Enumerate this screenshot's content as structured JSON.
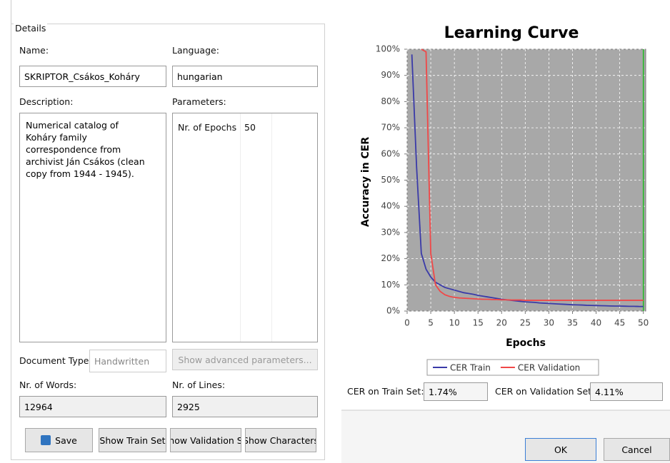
{
  "details": {
    "legend": "Details",
    "name_label": "Name:",
    "name_value": "SKRIPTOR_Csákos_Koháry",
    "language_label": "Language:",
    "language_value": "hungarian",
    "description_label": "Description:",
    "description_value": "Numerical catalog of Koháry family correspondence from archivist Ján Csákos (clean copy from 1944 - 1945).",
    "parameters_label": "Parameters:",
    "parameters": [
      [
        "Nr. of Epochs",
        "50"
      ]
    ],
    "doc_type_label": "Document Type:",
    "doc_type_value": "Handwritten",
    "advanced_button": "Show advanced parameters...",
    "words_label": "Nr. of Words:",
    "words_value": "12964",
    "lines_label": "Nr. of Lines:",
    "lines_value": "2925",
    "buttons": [
      "Save",
      "Show Train Set",
      "how Validation S",
      "Show Characters"
    ]
  },
  "chart_data": {
    "type": "line",
    "title": "Learning Curve",
    "x_label": "Epochs",
    "y_label": "Accuracy in CER",
    "x": [
      1,
      2,
      3,
      4,
      5,
      6,
      7,
      8,
      9,
      10,
      11,
      12,
      13,
      14,
      15,
      16,
      17,
      18,
      19,
      20,
      21,
      22,
      23,
      24,
      25,
      26,
      27,
      28,
      29,
      30,
      31,
      32,
      33,
      34,
      35,
      36,
      37,
      38,
      39,
      40,
      41,
      42,
      43,
      44,
      45,
      46,
      47,
      48,
      49,
      50
    ],
    "series": [
      {
        "name": "CER Train",
        "color": "#3a3aa8",
        "values": [
          98,
          55,
          22,
          16,
          13,
          11,
          10,
          9,
          8.5,
          8,
          7.5,
          7,
          6.7,
          6.4,
          6,
          5.7,
          5.4,
          5.1,
          4.8,
          4.5,
          4.3,
          4.1,
          3.9,
          3.7,
          3.5,
          3.4,
          3.3,
          3.1,
          3,
          2.9,
          2.8,
          2.7,
          2.6,
          2.5,
          2.4,
          2.35,
          2.3,
          2.2,
          2.15,
          2.1,
          2.05,
          2,
          1.95,
          1.9,
          1.9,
          1.85,
          1.8,
          1.8,
          1.75,
          1.74
        ]
      },
      {
        "name": "CER Validation",
        "color": "#f04848",
        "values": [
          null,
          null,
          100,
          99,
          22,
          10,
          7.5,
          6.2,
          5.6,
          5.2,
          5,
          4.9,
          4.8,
          4.7,
          4.6,
          4.5,
          4.5,
          4.4,
          4.4,
          4.3,
          4.3,
          4.2,
          4.2,
          4.2,
          4.1,
          4.1,
          4.1,
          4.1,
          4.1,
          4.1,
          4.1,
          4.1,
          4.1,
          4.1,
          4.1,
          4.1,
          4.1,
          4.1,
          4.1,
          4.1,
          4.1,
          4.1,
          4.1,
          4.1,
          4.1,
          4.1,
          4.1,
          4.1,
          4.1,
          4.11
        ]
      }
    ],
    "vline": {
      "x": 50,
      "color": "#22bb22"
    },
    "xlim": [
      0,
      50.5
    ],
    "ylim": [
      0,
      100
    ],
    "xticks": [
      0,
      5,
      10,
      15,
      20,
      25,
      30,
      35,
      40,
      45,
      50
    ],
    "yticks": [
      {
        "value": 0,
        "label": "0%"
      },
      {
        "value": 10,
        "label": "10%"
      },
      {
        "value": 20,
        "label": "20%"
      },
      {
        "value": 30,
        "label": "30%"
      },
      {
        "value": 40,
        "label": "40%"
      },
      {
        "value": 50,
        "label": "50%"
      },
      {
        "value": 60,
        "label": "60%"
      },
      {
        "value": 70,
        "label": "70%"
      },
      {
        "value": 80,
        "label": "80%"
      },
      {
        "value": 90,
        "label": "90%"
      },
      {
        "value": 100,
        "label": "100%"
      }
    ],
    "grid": true
  },
  "stats": {
    "train_label": "CER on Train Set:",
    "train_value": "1.74%",
    "validation_label": "CER on Validation Set:",
    "validation_value": "4.11%"
  },
  "dialog_buttons": [
    "OK",
    "Cancel"
  ]
}
